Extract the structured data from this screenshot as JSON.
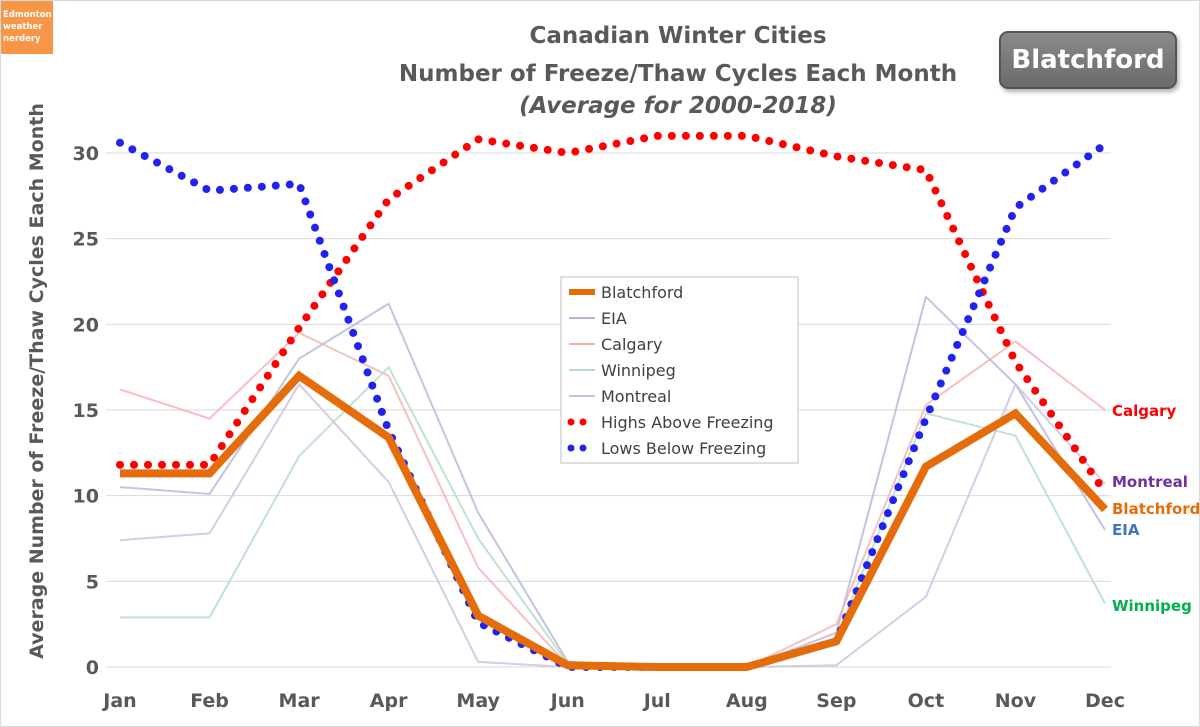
{
  "logo": {
    "lines": [
      "Edmonton",
      "weather",
      "nerdery"
    ]
  },
  "badge": "Blatchford",
  "chart_data": {
    "type": "line",
    "title": [
      "Canadian Winter Cities",
      "Number of Freeze/Thaw Cycles Each Month"
    ],
    "subtitle": "(Average for 2000-2018)",
    "ylabel": "Average Number of Freeze/Thaw Cycles Each Month",
    "xlabel": "",
    "ylim": [
      0,
      32
    ],
    "yticks": [
      0,
      5,
      10,
      15,
      20,
      25,
      30
    ],
    "grid": true,
    "legend_position": "center",
    "categories": [
      "Jan",
      "Feb",
      "Mar",
      "Apr",
      "May",
      "Jun",
      "Jul",
      "Aug",
      "Sep",
      "Oct",
      "Nov",
      "Dec"
    ],
    "series": [
      {
        "name": "EIA",
        "style": "faint",
        "color": "#b4b4dc",
        "values": [
          10.5,
          10.1,
          18,
          21.2,
          9,
          0.3,
          0,
          0,
          2,
          21.6,
          16.5,
          8
        ]
      },
      {
        "name": "Calgary",
        "style": "faint",
        "color": "#f4b0b0",
        "values": [
          16.2,
          14.5,
          19.5,
          17,
          5.8,
          0.1,
          0,
          0,
          2.5,
          15.3,
          19,
          15
        ]
      },
      {
        "name": "Winnipeg",
        "style": "faint",
        "color": "#b0dcc4",
        "values": [
          2.9,
          2.9,
          12.3,
          17.5,
          7.5,
          0.2,
          0,
          0,
          1.7,
          14.8,
          13.5,
          3.7
        ]
      },
      {
        "name": "Montreal",
        "style": "faint",
        "color": "#c8c0e0",
        "values": [
          7.4,
          7.8,
          16.5,
          10.8,
          0.3,
          0,
          0,
          0,
          0.1,
          4.1,
          16.5,
          10.7
        ]
      },
      {
        "name": "Highs Above Freezing",
        "style": "dots",
        "color": "#ff0000",
        "values": [
          11.8,
          11.8,
          19.8,
          27.3,
          30.8,
          30,
          31,
          31,
          29.8,
          29,
          17.8,
          10.2
        ]
      },
      {
        "name": "Lows Below Freezing",
        "style": "dots",
        "color": "#2222ee",
        "values": [
          30.6,
          27.8,
          28.2,
          13.8,
          2.6,
          0,
          0,
          0,
          1.5,
          14.5,
          26.8,
          30.5
        ]
      },
      {
        "name": "Blatchford",
        "style": "thick",
        "color": "#e46c0a",
        "values": [
          11.3,
          11.3,
          17,
          13.4,
          3,
          0.1,
          0,
          0,
          1.5,
          11.7,
          14.8,
          9.2
        ]
      }
    ],
    "end_labels": [
      {
        "text": "Calgary",
        "color": "#ff0000",
        "value": 15
      },
      {
        "text": "Montreal",
        "color": "#7030a0",
        "value": 10.7
      },
      {
        "text": "Blatchford",
        "color": "#e46c0a",
        "value": 9.2
      },
      {
        "text": "EIA",
        "color": "#4472c4",
        "value": 8
      },
      {
        "text": "Winnipeg",
        "color": "#00b050",
        "value": 3.7
      }
    ]
  }
}
